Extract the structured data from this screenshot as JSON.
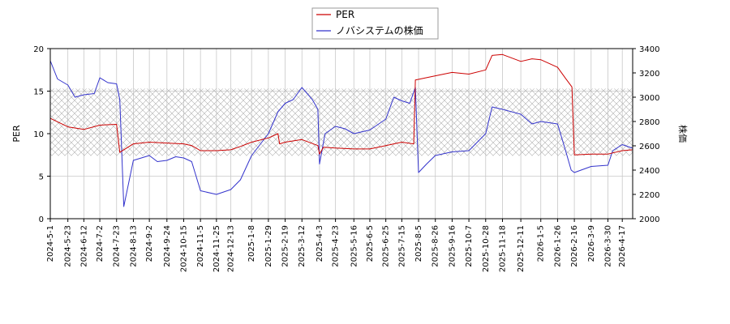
{
  "chart_data": {
    "type": "line",
    "x_start": "2024-5-1",
    "x_end": "2026-4-30",
    "categories": [
      "2024-5-1",
      "2024-5-23",
      "2024-6-12",
      "2024-7-2",
      "2024-7-23",
      "2024-8-13",
      "2024-9-2",
      "2024-9-24",
      "2024-10-15",
      "2024-11-5",
      "2024-11-25",
      "2024-12-13",
      "2025-1-8",
      "2025-1-29",
      "2025-2-19",
      "2025-3-12",
      "2025-4-3",
      "2025-4-23",
      "2025-5-16",
      "2025-6-5",
      "2025-6-25",
      "2025-7-15",
      "2025-8-5",
      "2025-8-26",
      "2025-9-16",
      "2025-10-7",
      "2025-10-28",
      "2025-11-18",
      "2025-12-11",
      "2026-1-5",
      "2026-1-26",
      "2026-2-16",
      "2026-3-9",
      "2026-3-30",
      "2026-4-17"
    ],
    "ylabel": "PER",
    "y2label": "株価",
    "ylim": [
      0,
      20
    ],
    "y2lim": [
      2000,
      3400
    ],
    "yticks": [
      "0",
      "5",
      "10",
      "15",
      "20"
    ],
    "y2ticks": [
      "2000",
      "2200",
      "2400",
      "2600",
      "2800",
      "3000",
      "3200",
      "3400"
    ],
    "grid": true,
    "legend_position": "top-center",
    "per_band": [
      7.4,
      15.3
    ],
    "series": [
      {
        "name": "PER",
        "color": "#cc0000",
        "axis": "left",
        "points": [
          [
            "2024-5-1",
            11.8
          ],
          [
            "2024-5-23",
            10.8
          ],
          [
            "2024-6-12",
            10.5
          ],
          [
            "2024-7-2",
            11.0
          ],
          [
            "2024-7-23",
            11.1
          ],
          [
            "2024-7-27",
            7.8
          ],
          [
            "2024-8-13",
            8.8
          ],
          [
            "2024-9-2",
            9.0
          ],
          [
            "2024-9-24",
            8.9
          ],
          [
            "2024-10-15",
            8.8
          ],
          [
            "2024-10-25",
            8.6
          ],
          [
            "2024-11-5",
            8.0
          ],
          [
            "2024-11-25",
            8.0
          ],
          [
            "2024-12-13",
            8.1
          ],
          [
            "2024-12-25",
            8.5
          ],
          [
            "2025-1-8",
            9.0
          ],
          [
            "2025-1-29",
            9.5
          ],
          [
            "2025-2-10",
            10.0
          ],
          [
            "2025-2-12",
            8.8
          ],
          [
            "2025-2-19",
            9.0
          ],
          [
            "2025-3-12",
            9.3
          ],
          [
            "2025-4-1",
            8.6
          ],
          [
            "2025-4-3",
            7.6
          ],
          [
            "2025-4-8",
            8.4
          ],
          [
            "2025-4-23",
            8.3
          ],
          [
            "2025-5-16",
            8.2
          ],
          [
            "2025-6-5",
            8.2
          ],
          [
            "2025-6-25",
            8.6
          ],
          [
            "2025-7-5",
            8.8
          ],
          [
            "2025-7-15",
            9.0
          ],
          [
            "2025-7-30",
            8.8
          ],
          [
            "2025-8-1",
            16.3
          ],
          [
            "2025-8-26",
            16.8
          ],
          [
            "2025-9-16",
            17.2
          ],
          [
            "2025-10-7",
            17.0
          ],
          [
            "2025-10-28",
            17.5
          ],
          [
            "2025-11-5",
            19.2
          ],
          [
            "2025-11-18",
            19.3
          ],
          [
            "2025-12-11",
            18.5
          ],
          [
            "2025-12-25",
            18.8
          ],
          [
            "2026-1-5",
            18.7
          ],
          [
            "2026-1-26",
            17.8
          ],
          [
            "2026-2-5",
            16.5
          ],
          [
            "2026-2-13",
            15.5
          ],
          [
            "2026-2-16",
            7.5
          ],
          [
            "2026-3-9",
            7.6
          ],
          [
            "2026-3-30",
            7.6
          ],
          [
            "2026-4-17",
            8.0
          ],
          [
            "2026-4-30",
            8.1
          ]
        ]
      },
      {
        "name": "ノバシステムの株価",
        "color": "#3333cc",
        "axis": "right",
        "points": [
          [
            "2024-5-1",
            3300
          ],
          [
            "2024-5-10",
            3150
          ],
          [
            "2024-5-23",
            3100
          ],
          [
            "2024-6-1",
            3000
          ],
          [
            "2024-6-12",
            3020
          ],
          [
            "2024-6-25",
            3030
          ],
          [
            "2024-7-2",
            3160
          ],
          [
            "2024-7-12",
            3120
          ],
          [
            "2024-7-23",
            3110
          ],
          [
            "2024-7-27",
            2980
          ],
          [
            "2024-8-1",
            2100
          ],
          [
            "2024-8-13",
            2480
          ],
          [
            "2024-9-2",
            2520
          ],
          [
            "2024-9-12",
            2470
          ],
          [
            "2024-9-24",
            2480
          ],
          [
            "2024-10-5",
            2510
          ],
          [
            "2024-10-15",
            2500
          ],
          [
            "2024-10-25",
            2470
          ],
          [
            "2024-11-5",
            2230
          ],
          [
            "2024-11-25",
            2200
          ],
          [
            "2024-12-13",
            2240
          ],
          [
            "2024-12-25",
            2320
          ],
          [
            "2025-1-8",
            2520
          ],
          [
            "2025-1-29",
            2700
          ],
          [
            "2025-2-10",
            2880
          ],
          [
            "2025-2-19",
            2950
          ],
          [
            "2025-3-1",
            2980
          ],
          [
            "2025-3-12",
            3080
          ],
          [
            "2025-3-25",
            2980
          ],
          [
            "2025-4-1",
            2900
          ],
          [
            "2025-4-3",
            2450
          ],
          [
            "2025-4-10",
            2700
          ],
          [
            "2025-4-23",
            2760
          ],
          [
            "2025-5-5",
            2740
          ],
          [
            "2025-5-16",
            2700
          ],
          [
            "2025-6-5",
            2730
          ],
          [
            "2025-6-25",
            2820
          ],
          [
            "2025-7-5",
            3000
          ],
          [
            "2025-7-15",
            2970
          ],
          [
            "2025-7-25",
            2950
          ],
          [
            "2025-8-1",
            3080
          ],
          [
            "2025-8-5",
            2380
          ],
          [
            "2025-8-15",
            2450
          ],
          [
            "2025-8-26",
            2520
          ],
          [
            "2025-9-16",
            2550
          ],
          [
            "2025-10-7",
            2560
          ],
          [
            "2025-10-28",
            2700
          ],
          [
            "2025-11-5",
            2920
          ],
          [
            "2025-11-18",
            2900
          ],
          [
            "2025-12-11",
            2860
          ],
          [
            "2025-12-25",
            2780
          ],
          [
            "2026-1-5",
            2800
          ],
          [
            "2026-1-26",
            2780
          ],
          [
            "2026-2-5",
            2560
          ],
          [
            "2026-2-12",
            2400
          ],
          [
            "2026-2-16",
            2380
          ],
          [
            "2026-3-9",
            2430
          ],
          [
            "2026-3-30",
            2440
          ],
          [
            "2026-4-5",
            2560
          ],
          [
            "2026-4-17",
            2610
          ],
          [
            "2026-4-30",
            2580
          ]
        ]
      }
    ]
  }
}
